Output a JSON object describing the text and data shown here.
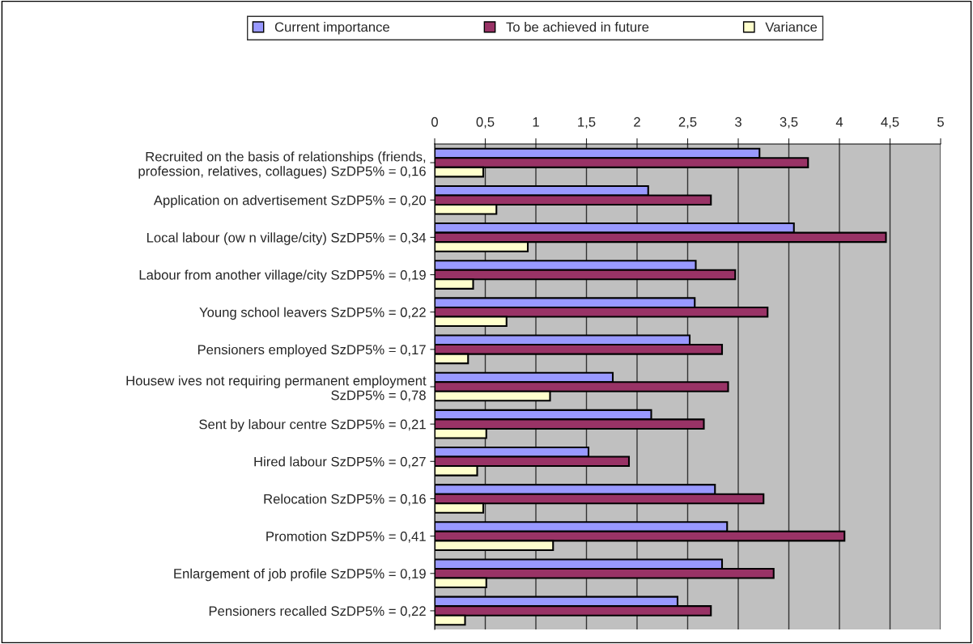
{
  "chart_data": {
    "type": "bar",
    "orientation": "horizontal",
    "categories": [
      "Recruited on the basis of relationships (friends,\nprofession, relatives, collagues) SzDP5% = 0,16",
      "Application on advertisement SzDP5% = 0,20",
      "Local labour (ow n village/city) SzDP5% = 0,34",
      "Labour from another village/city SzDP5% = 0,19",
      "Young school leavers SzDP5% = 0,22",
      "Pensioners employed SzDP5% = 0,17",
      "Housew ives not requiring permanent employment\nSzDP5% = 0,78",
      "Sent by labour centre SzDP5% = 0,21",
      "Hired labour SzDP5% = 0,27",
      "Relocation SzDP5% = 0,16",
      "Promotion SzDP5% = 0,41",
      "Enlargement of job profile SzDP5% = 0,19",
      "Pensioners recalled SzDP5% = 0,22"
    ],
    "series": [
      {
        "name": "Current importance",
        "color": "#9999ff",
        "values": [
          3.21,
          2.11,
          3.55,
          2.58,
          2.57,
          2.52,
          1.76,
          2.14,
          1.52,
          2.77,
          2.89,
          2.84,
          2.4
        ]
      },
      {
        "name": "To be achieved in future",
        "color": "#993366",
        "values": [
          3.69,
          2.73,
          4.46,
          2.97,
          3.29,
          2.84,
          2.9,
          2.66,
          1.92,
          3.25,
          4.05,
          3.35,
          2.73
        ]
      },
      {
        "name": "Variance",
        "color": "#ffffcc",
        "values": [
          0.48,
          0.61,
          0.92,
          0.38,
          0.71,
          0.33,
          1.14,
          0.51,
          0.42,
          0.48,
          1.17,
          0.51,
          0.3
        ]
      }
    ],
    "xlim": [
      0,
      5
    ],
    "xticks": [
      0,
      {
        "value": 0.5,
        "label": "0,5"
      },
      1,
      {
        "value": 1.5,
        "label": "1,5"
      },
      2,
      {
        "value": 2.5,
        "label": "2,5"
      },
      3,
      {
        "value": 3.5,
        "label": "3,5"
      },
      4,
      {
        "value": 4.5,
        "label": "4,5"
      },
      5
    ],
    "grid": "x",
    "legend": "top"
  }
}
